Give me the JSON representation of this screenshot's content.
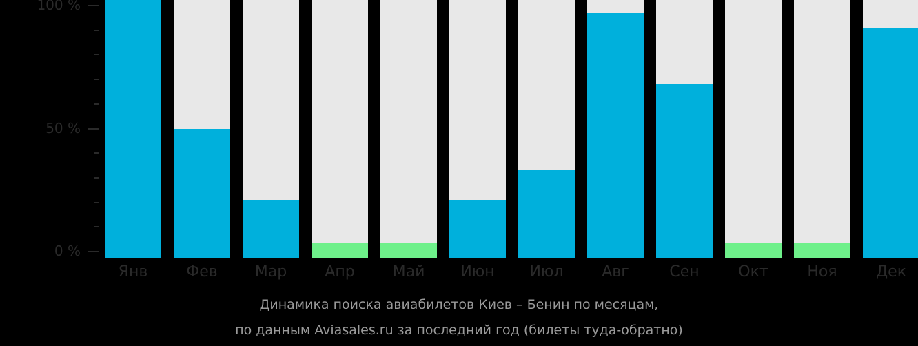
{
  "chart_data": {
    "type": "bar",
    "title": "Динамика поиска авиабилетов Киев – Бенин по месяцам,",
    "subtitle": "по данным Aviasales.ru за последний год (билеты туда-обратно)",
    "xlabel": "",
    "ylabel": "",
    "ylim": [
      0,
      100
    ],
    "yticks": [
      "0 %",
      "50 %",
      "100 %"
    ],
    "categories": [
      "Янв",
      "Фев",
      "Мар",
      "Апр",
      "Май",
      "Июн",
      "Июл",
      "Авг",
      "Сен",
      "Окт",
      "Ноя",
      "Дек"
    ],
    "values": [
      100,
      50,
      21,
      3,
      3,
      21,
      33,
      97,
      68,
      3,
      3,
      91
    ],
    "minimal_flags": [
      false,
      false,
      false,
      true,
      true,
      false,
      false,
      false,
      false,
      true,
      true,
      false
    ],
    "grid": false,
    "legend": null
  },
  "colors": {
    "background": "#000000",
    "bar_fill": "#00b0dc",
    "bar_minimal": "#6ef08a",
    "bar_track": "#e8e8e8",
    "axis_text": "#2a2a2a",
    "caption_text": "#9a9a9a"
  }
}
